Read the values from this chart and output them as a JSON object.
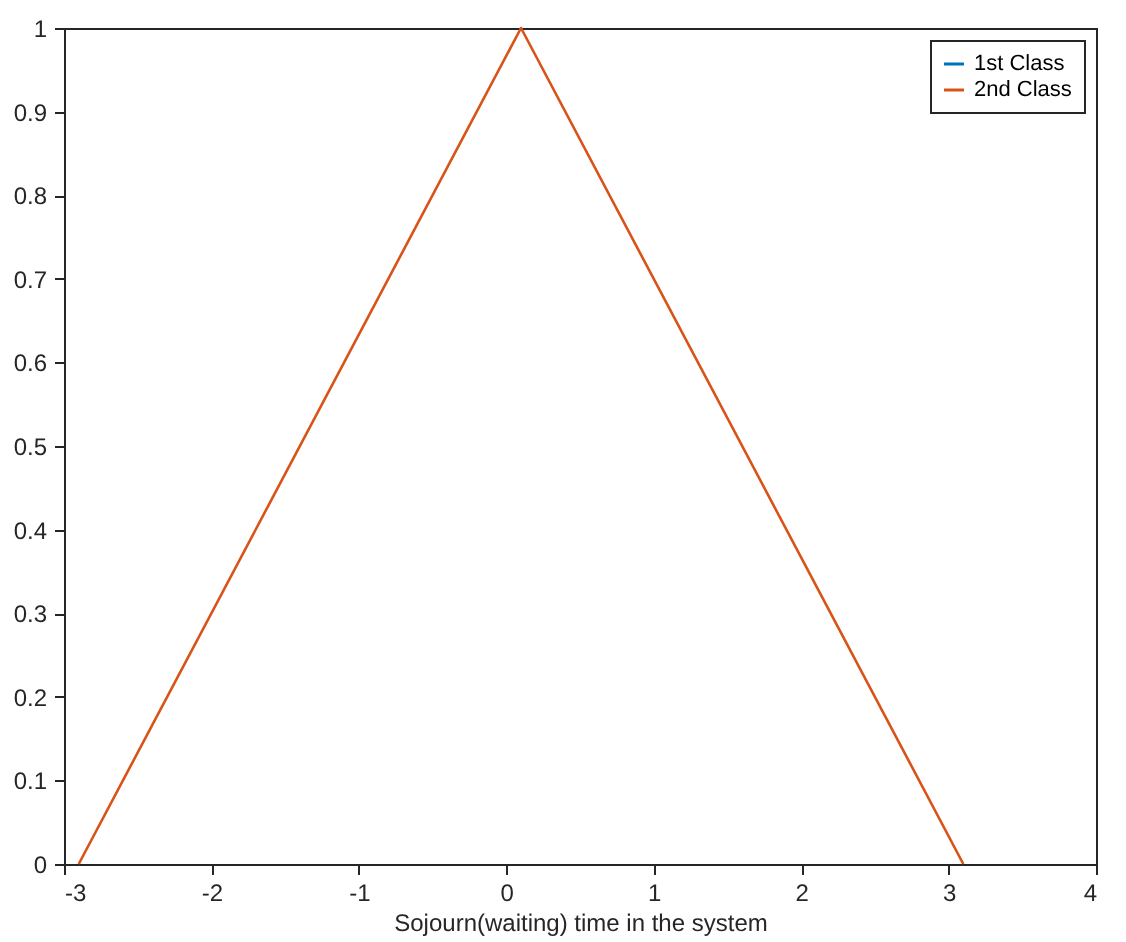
{
  "chart_data": {
    "type": "line",
    "xlabel": "Sojourn(waiting) time in the system",
    "x": [
      -2.9,
      0.1,
      3.1
    ],
    "series": [
      {
        "name": "1st Class",
        "color": "#0072bd",
        "values": [
          null,
          null,
          null
        ]
      },
      {
        "name": "2nd Class",
        "color": "#d95319",
        "values": [
          0,
          1,
          0
        ]
      }
    ],
    "xlim": [
      -3,
      4
    ],
    "xticks": [
      -3,
      -2,
      -1,
      0,
      1,
      2,
      3,
      4
    ],
    "ylim": [
      0,
      1
    ],
    "yticks": [
      0,
      0.1,
      0.2,
      0.3,
      0.4,
      0.5,
      0.6,
      0.7,
      0.8,
      0.9,
      1
    ],
    "grid": false,
    "legend": "top right",
    "marker": "none",
    "line_style": "solid"
  }
}
